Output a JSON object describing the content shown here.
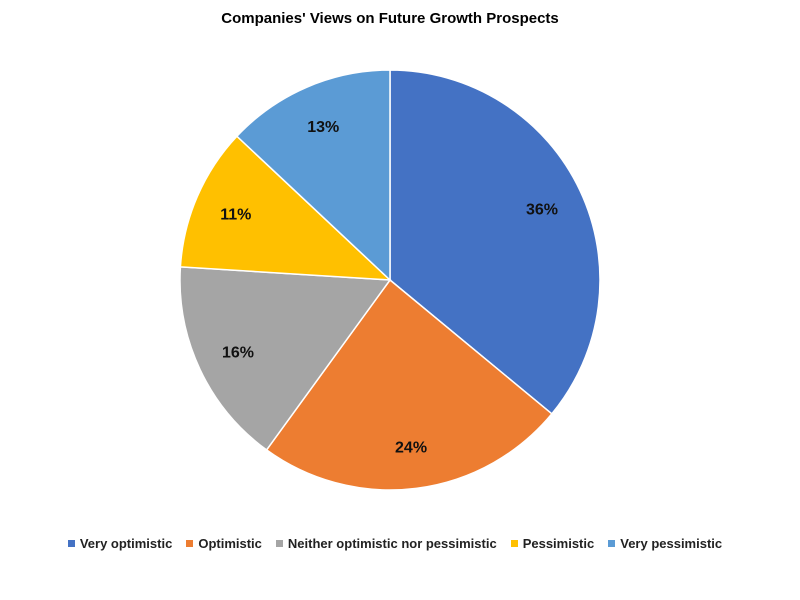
{
  "chart_data": {
    "type": "pie",
    "title": "Companies' Views on Future Growth Prospects",
    "categories": [
      "Very optimistic",
      "Optimistic",
      "Neither optimistic nor pessimistic",
      "Pessimistic",
      "Very pessimistic"
    ],
    "values": [
      36,
      24,
      16,
      11,
      13
    ],
    "data_labels": [
      "36%",
      "24%",
      "16%",
      "11%",
      "13%"
    ],
    "colors": [
      "#4472C4",
      "#ED7D31",
      "#A5A5A5",
      "#FFC000",
      "#5B9BD5"
    ],
    "start_angle_deg": 0,
    "direction": "clockwise",
    "legend_position": "bottom"
  }
}
